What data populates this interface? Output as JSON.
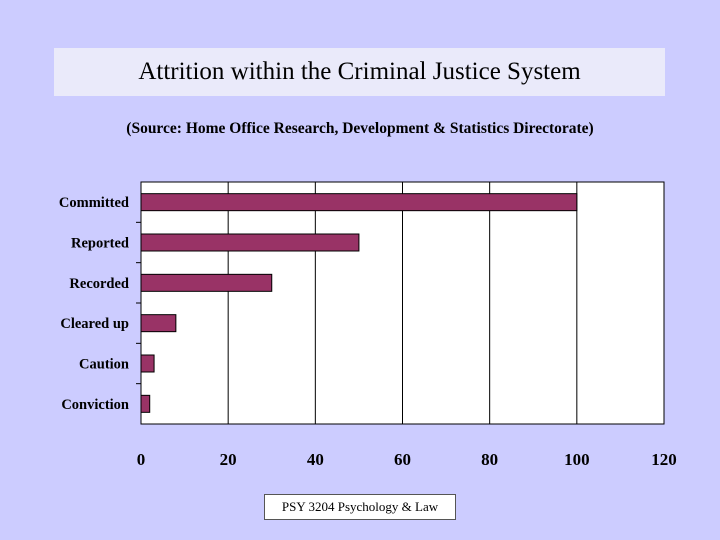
{
  "slide": {
    "title": "Attrition within the Criminal Justice System",
    "subtitle": "(Source: Home Office Research, Development & Statistics Directorate)",
    "footer": "PSY 3204 Psychology & Law"
  },
  "colors": {
    "background": "#ccccff",
    "bar": "#993366",
    "plot_background": "#ffffff"
  },
  "chart_data": {
    "type": "bar",
    "orientation": "horizontal",
    "categories": [
      "Committed",
      "Reported",
      "Recorded",
      "Cleared up",
      "Caution",
      "Conviction"
    ],
    "values": [
      100,
      50,
      30,
      8,
      3,
      2
    ],
    "xlim": [
      0,
      120
    ],
    "xticks": [
      0,
      20,
      40,
      60,
      80,
      100,
      120
    ],
    "grid": "vertical",
    "legend": "none",
    "title": "Attrition within the Criminal Justice System",
    "subtitle": "(Source: Home Office Research, Development & Statistics Directorate)",
    "xlabel": "",
    "ylabel": ""
  }
}
